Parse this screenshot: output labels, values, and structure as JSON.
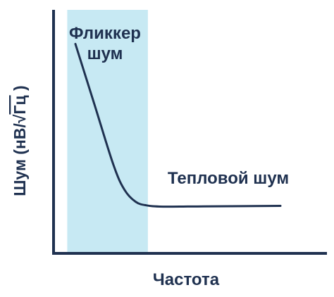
{
  "chart_data": {
    "type": "line",
    "xlabel": "Частота",
    "ylabel_prefix": "Шум (нВ/",
    "ylabel_radical_arg": "Гц",
    "ylabel_suffix": " )",
    "region": {
      "label_line1": "Фликкер",
      "label_line2": "шум",
      "x_range": [
        0.05,
        0.345
      ]
    },
    "annotation": "Тепловой шум",
    "series": [
      {
        "x": [
          0.08,
          0.15,
          0.22,
          0.26,
          0.3,
          0.34,
          0.4,
          0.55,
          0.7,
          0.83
        ],
        "y": [
          0.86,
          0.61,
          0.36,
          0.26,
          0.212,
          0.197,
          0.192,
          0.193,
          0.194,
          0.195
        ]
      }
    ],
    "xlim": [
      0,
      1
    ],
    "ylim": [
      0,
      1
    ],
    "grid": false,
    "axis_ticks": false,
    "colors": {
      "region_fill": "#c7e9f3",
      "line": "#1f3150",
      "axis": "#1f3150",
      "text": "#1f3150"
    }
  }
}
